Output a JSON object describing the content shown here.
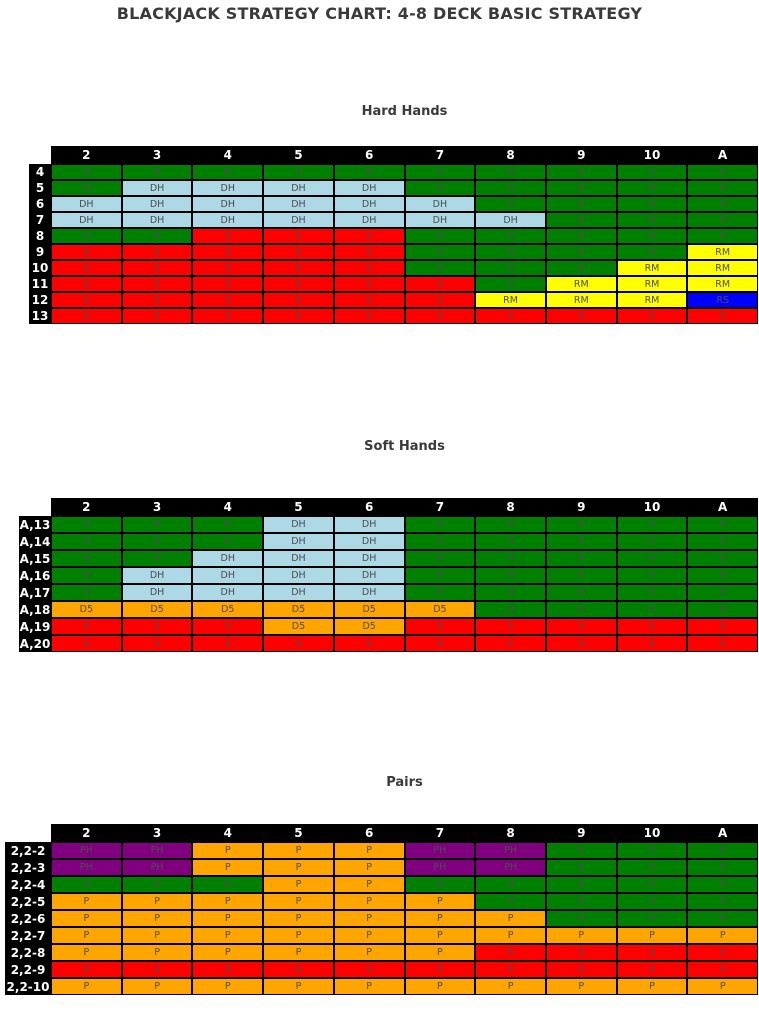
{
  "title": "BLACKJACK STRATEGY CHART: 4-8 DECK BASIC STRATEGY",
  "colors": {
    "H": "#008000",
    "S": "#ff0000",
    "DH": "#add8e6",
    "D5": "#ffa500",
    "RM": "#ffff00",
    "RS": "#0000ff",
    "P": "#ffa500",
    "PH": "#800080",
    "header_bg": "#000000",
    "header_text": "#ffffff",
    "cell_text": "#4d4d4d"
  },
  "chart_data": [
    {
      "type": "table",
      "title": "Hard Hands",
      "columns": [
        "2",
        "3",
        "4",
        "5",
        "6",
        "7",
        "8",
        "9",
        "10",
        "A"
      ],
      "rows": [
        {
          "label": "4",
          "cells": [
            "H",
            "H",
            "H",
            "H",
            "H",
            "H",
            "H",
            "H",
            "H",
            "H"
          ]
        },
        {
          "label": "5",
          "cells": [
            "H",
            "DH",
            "DH",
            "DH",
            "DH",
            "H",
            "H",
            "H",
            "H",
            "H"
          ]
        },
        {
          "label": "6",
          "cells": [
            "DH",
            "DH",
            "DH",
            "DH",
            "DH",
            "DH",
            "H",
            "H",
            "H",
            "H"
          ]
        },
        {
          "label": "7",
          "cells": [
            "DH",
            "DH",
            "DH",
            "DH",
            "DH",
            "DH",
            "DH",
            "H",
            "H",
            "H"
          ]
        },
        {
          "label": "8",
          "cells": [
            "H",
            "H",
            "S",
            "S",
            "S",
            "H",
            "H",
            "H",
            "H",
            "H"
          ]
        },
        {
          "label": "9",
          "cells": [
            "S",
            "S",
            "S",
            "S",
            "S",
            "H",
            "H",
            "H",
            "H",
            "RM"
          ]
        },
        {
          "label": "10",
          "cells": [
            "S",
            "S",
            "S",
            "S",
            "S",
            "H",
            "H",
            "H",
            "RM",
            "RM"
          ]
        },
        {
          "label": "11",
          "cells": [
            "S",
            "S",
            "S",
            "S",
            "S",
            "S",
            "H",
            "RM",
            "RM",
            "RM"
          ]
        },
        {
          "label": "12",
          "cells": [
            "S",
            "S",
            "S",
            "S",
            "S",
            "S",
            "RM",
            "RM",
            "RM",
            "RS"
          ]
        },
        {
          "label": "13",
          "cells": [
            "S",
            "S",
            "S",
            "S",
            "S",
            "S",
            "S",
            "S",
            "S",
            "S"
          ]
        }
      ]
    },
    {
      "type": "table",
      "title": "Soft Hands",
      "columns": [
        "2",
        "3",
        "4",
        "5",
        "6",
        "7",
        "8",
        "9",
        "10",
        "A"
      ],
      "rows": [
        {
          "label": "A,13",
          "cells": [
            "H",
            "H",
            "H",
            "DH",
            "DH",
            "H",
            "H",
            "H",
            "H",
            "H"
          ]
        },
        {
          "label": "A,14",
          "cells": [
            "H",
            "H",
            "H",
            "DH",
            "DH",
            "H",
            "H",
            "H",
            "H",
            "H"
          ]
        },
        {
          "label": "A,15",
          "cells": [
            "H",
            "H",
            "DH",
            "DH",
            "DH",
            "H",
            "H",
            "H",
            "H",
            "H"
          ]
        },
        {
          "label": "A,16",
          "cells": [
            "H",
            "DH",
            "DH",
            "DH",
            "DH",
            "H",
            "H",
            "H",
            "H",
            "H"
          ]
        },
        {
          "label": "A,17",
          "cells": [
            "H",
            "DH",
            "DH",
            "DH",
            "DH",
            "H",
            "H",
            "H",
            "H",
            "H"
          ]
        },
        {
          "label": "A,18",
          "cells": [
            "D5",
            "D5",
            "D5",
            "D5",
            "D5",
            "D5",
            "H",
            "H",
            "H",
            "H"
          ]
        },
        {
          "label": "A,19",
          "cells": [
            "S",
            "S",
            "S",
            "D5",
            "D5",
            "S",
            "S",
            "S",
            "S",
            "S"
          ]
        },
        {
          "label": "A,20",
          "cells": [
            "S",
            "S",
            "S",
            "S",
            "S",
            "S",
            "S",
            "S",
            "S",
            "S"
          ]
        }
      ]
    },
    {
      "type": "table",
      "title": "Pairs",
      "columns": [
        "2",
        "3",
        "4",
        "5",
        "6",
        "7",
        "8",
        "9",
        "10",
        "A"
      ],
      "rows": [
        {
          "label": "2,2-2",
          "cells": [
            "PH",
            "PH",
            "P",
            "P",
            "P",
            "PH",
            "PH",
            "H",
            "H",
            "H"
          ]
        },
        {
          "label": "2,2-3",
          "cells": [
            "PH",
            "PH",
            "P",
            "P",
            "P",
            "PH",
            "PH",
            "H",
            "H",
            "H"
          ]
        },
        {
          "label": "2,2-4",
          "cells": [
            "H",
            "H",
            "H",
            "P",
            "P",
            "H",
            "H",
            "H",
            "H",
            "H"
          ]
        },
        {
          "label": "2,2-5",
          "cells": [
            "P",
            "P",
            "P",
            "P",
            "P",
            "P",
            "H",
            "H",
            "H",
            "H"
          ]
        },
        {
          "label": "2,2-6",
          "cells": [
            "P",
            "P",
            "P",
            "P",
            "P",
            "P",
            "P",
            "H",
            "H",
            "H"
          ]
        },
        {
          "label": "2,2-7",
          "cells": [
            "P",
            "P",
            "P",
            "P",
            "P",
            "P",
            "P",
            "P",
            "P",
            "P"
          ]
        },
        {
          "label": "2,2-8",
          "cells": [
            "P",
            "P",
            "P",
            "P",
            "P",
            "P",
            "S",
            "S",
            "S",
            "S"
          ]
        },
        {
          "label": "2,2-9",
          "cells": [
            "S",
            "S",
            "S",
            "S",
            "S",
            "S",
            "S",
            "S",
            "S",
            "S"
          ]
        },
        {
          "label": "2,2-10",
          "cells": [
            "P",
            "P",
            "P",
            "P",
            "P",
            "P",
            "P",
            "P",
            "P",
            "P"
          ]
        }
      ]
    }
  ]
}
